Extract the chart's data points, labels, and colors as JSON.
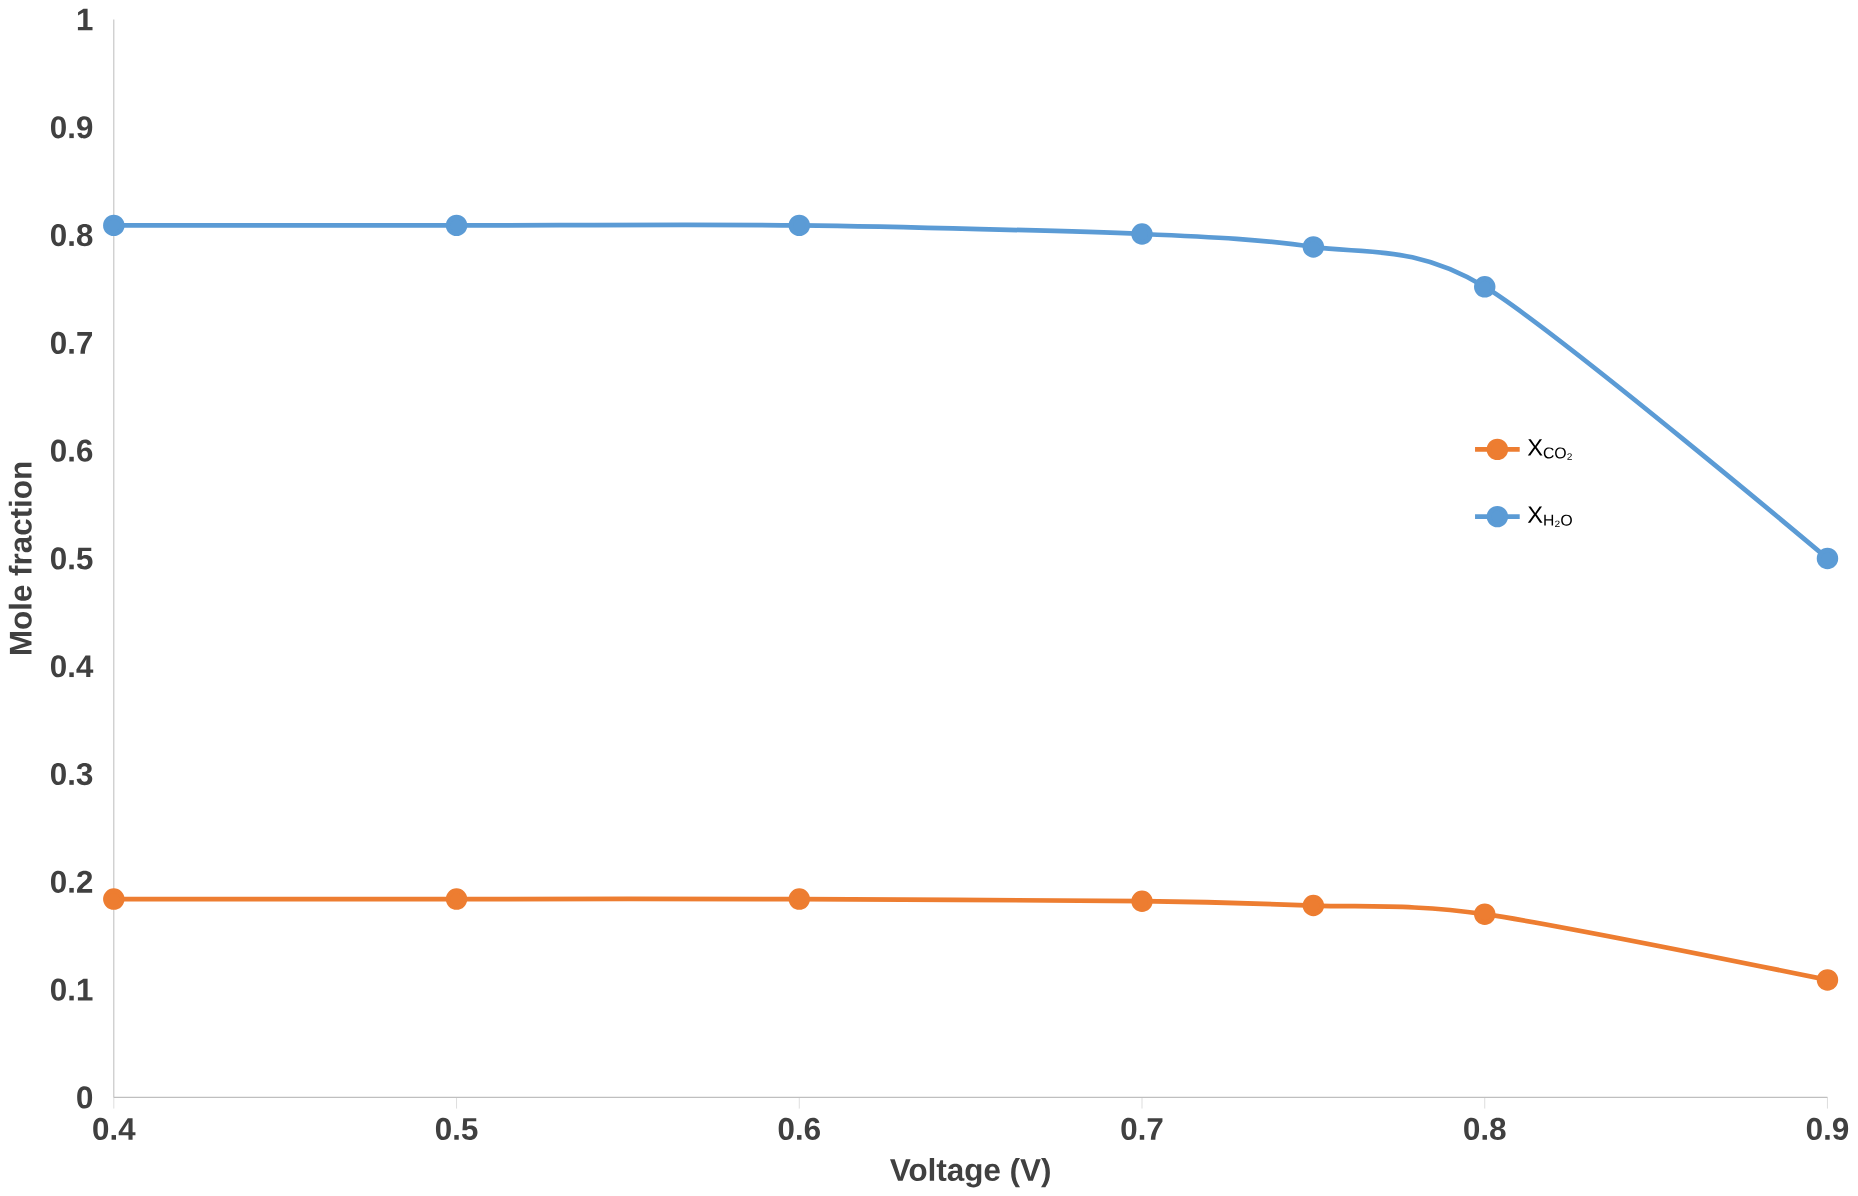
{
  "chart_data": {
    "type": "line",
    "xlabel": "Voltage (V)",
    "ylabel": "Mole fraction",
    "x": [
      0.4,
      0.5,
      0.6,
      0.7,
      0.75,
      0.8,
      0.9
    ],
    "series": [
      {
        "name": "X$_{CO₂}$",
        "color": "#ed7d31",
        "values": [
          0.184,
          0.184,
          0.184,
          0.182,
          0.178,
          0.17,
          0.109
        ]
      },
      {
        "name": "X$_{H₂O}$",
        "color": "#5b9bd5",
        "values": [
          0.809,
          0.809,
          0.809,
          0.801,
          0.789,
          0.752,
          0.5
        ]
      }
    ],
    "xlim": [
      0.4,
      0.9
    ],
    "xticks": [
      0.4,
      0.5,
      0.6,
      0.7,
      0.8,
      0.9
    ],
    "ylim": [
      0,
      1
    ],
    "yticks": [
      0,
      0.1,
      0.2,
      0.3,
      0.4,
      0.5,
      0.6,
      0.7,
      0.8,
      0.9,
      1
    ],
    "grid": false,
    "legend": "right",
    "marker": "circle",
    "line_style": "solid"
  }
}
